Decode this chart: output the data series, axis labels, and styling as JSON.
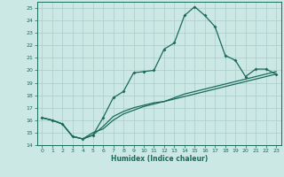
{
  "xlabel": "Humidex (Indice chaleur)",
  "bg_color": "#cce8e4",
  "grid_color": "#aacccc",
  "line_color": "#1a6b5a",
  "xlim": [
    -0.5,
    23.5
  ],
  "ylim": [
    14,
    25.5
  ],
  "x_ticks": [
    0,
    1,
    2,
    3,
    4,
    5,
    6,
    7,
    8,
    9,
    10,
    11,
    12,
    13,
    14,
    15,
    16,
    17,
    18,
    19,
    20,
    21,
    22,
    23
  ],
  "y_ticks": [
    14,
    15,
    16,
    17,
    18,
    19,
    20,
    21,
    22,
    23,
    24,
    25
  ],
  "line1_x": [
    0,
    1,
    2,
    3,
    4,
    5,
    6,
    7,
    8,
    9,
    10,
    11,
    12,
    13,
    14,
    15,
    16,
    17,
    18,
    19,
    20,
    21,
    22,
    23
  ],
  "line1_y": [
    16.2,
    16.0,
    15.7,
    14.7,
    14.5,
    14.8,
    15.5,
    16.3,
    16.7,
    17.0,
    17.2,
    17.4,
    17.5,
    17.7,
    17.9,
    18.1,
    18.3,
    18.5,
    18.7,
    18.9,
    19.1,
    19.3,
    19.5,
    19.7
  ],
  "line2_x": [
    0,
    1,
    2,
    3,
    4,
    5,
    6,
    7,
    8,
    9,
    10,
    11,
    12,
    13,
    14,
    15,
    16,
    17,
    18,
    19,
    20,
    21,
    22,
    23
  ],
  "line2_y": [
    16.2,
    16.0,
    15.7,
    14.7,
    14.5,
    14.8,
    16.2,
    17.8,
    18.3,
    19.8,
    19.9,
    20.0,
    21.7,
    22.2,
    24.4,
    25.1,
    24.4,
    23.5,
    21.2,
    20.8,
    19.5,
    20.1,
    20.1,
    19.7
  ],
  "line3_x": [
    0,
    1,
    2,
    3,
    4,
    5,
    6,
    7,
    8,
    9,
    10,
    11,
    12,
    13,
    14,
    15,
    16,
    17,
    18,
    19,
    20,
    21,
    22,
    23
  ],
  "line3_y": [
    16.2,
    16.0,
    15.7,
    14.7,
    14.5,
    15.0,
    15.3,
    16.0,
    16.5,
    16.8,
    17.1,
    17.3,
    17.5,
    17.8,
    18.1,
    18.3,
    18.5,
    18.7,
    18.9,
    19.1,
    19.3,
    19.5,
    19.7,
    19.9
  ]
}
